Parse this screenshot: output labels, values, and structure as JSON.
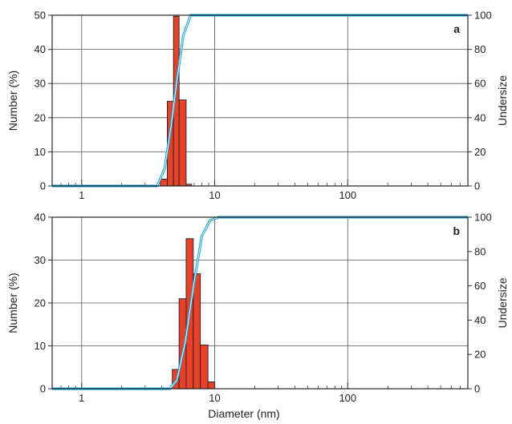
{
  "chart_data": [
    {
      "type": "bar",
      "panel_label": "a",
      "x_scale": "log",
      "xlim": [
        0.6,
        800
      ],
      "x_ticks": [
        1,
        10,
        100
      ],
      "x_tick_labels": [
        "1",
        "10",
        "100"
      ],
      "ylabel": "Number (%)",
      "ylim": [
        0,
        50
      ],
      "y_ticks": [
        0,
        10,
        20,
        30,
        40,
        50
      ],
      "y2label": "Undersize",
      "y2lim": [
        0,
        100
      ],
      "y2_ticks": [
        0,
        20,
        40,
        60,
        80,
        100
      ],
      "grid": true,
      "bar_color": "#e8412a",
      "line_color": "#1aa3d9",
      "bars": [
        {
          "x0": 3.9,
          "x1": 4.4,
          "value": 2.0
        },
        {
          "x0": 4.4,
          "x1": 4.9,
          "value": 24.8
        },
        {
          "x0": 4.9,
          "x1": 5.4,
          "value": 49.7
        },
        {
          "x0": 5.4,
          "x1": 6.1,
          "value": 25.2
        },
        {
          "x0": 6.1,
          "x1": 6.7,
          "value": 0.5
        }
      ],
      "cumulative": {
        "x": [
          0.6,
          3.7,
          4.2,
          4.7,
          5.2,
          5.8,
          6.6,
          800
        ],
        "y": [
          0,
          0,
          10,
          35,
          62,
          88,
          100,
          100
        ]
      }
    },
    {
      "type": "bar",
      "panel_label": "b",
      "x_scale": "log",
      "xlim": [
        0.6,
        800
      ],
      "x_ticks": [
        1,
        10,
        100
      ],
      "x_tick_labels": [
        "1",
        "10",
        "100"
      ],
      "xlabel": "Diameter (nm)",
      "ylabel": "Number (%)",
      "ylim": [
        0,
        40
      ],
      "y_ticks": [
        0,
        10,
        20,
        30,
        40
      ],
      "y2label": "Undersize",
      "y2lim": [
        0,
        100
      ],
      "y2_ticks": [
        0,
        20,
        40,
        60,
        80,
        100
      ],
      "grid": true,
      "bar_color": "#e8412a",
      "line_color": "#1aa3d9",
      "bars": [
        {
          "x0": 4.8,
          "x1": 5.4,
          "value": 4.5
        },
        {
          "x0": 5.4,
          "x1": 6.1,
          "value": 21.0
        },
        {
          "x0": 6.1,
          "x1": 6.9,
          "value": 35.0
        },
        {
          "x0": 6.9,
          "x1": 7.8,
          "value": 26.8
        },
        {
          "x0": 7.8,
          "x1": 8.9,
          "value": 10.2
        },
        {
          "x0": 8.9,
          "x1": 10.0,
          "value": 1.6
        }
      ],
      "cumulative": {
        "x": [
          0.6,
          4.6,
          5.2,
          6.0,
          7.0,
          8.0,
          9.2,
          10.6,
          800
        ],
        "y": [
          0,
          0,
          5,
          27,
          62,
          89,
          98,
          100,
          100
        ]
      }
    }
  ]
}
